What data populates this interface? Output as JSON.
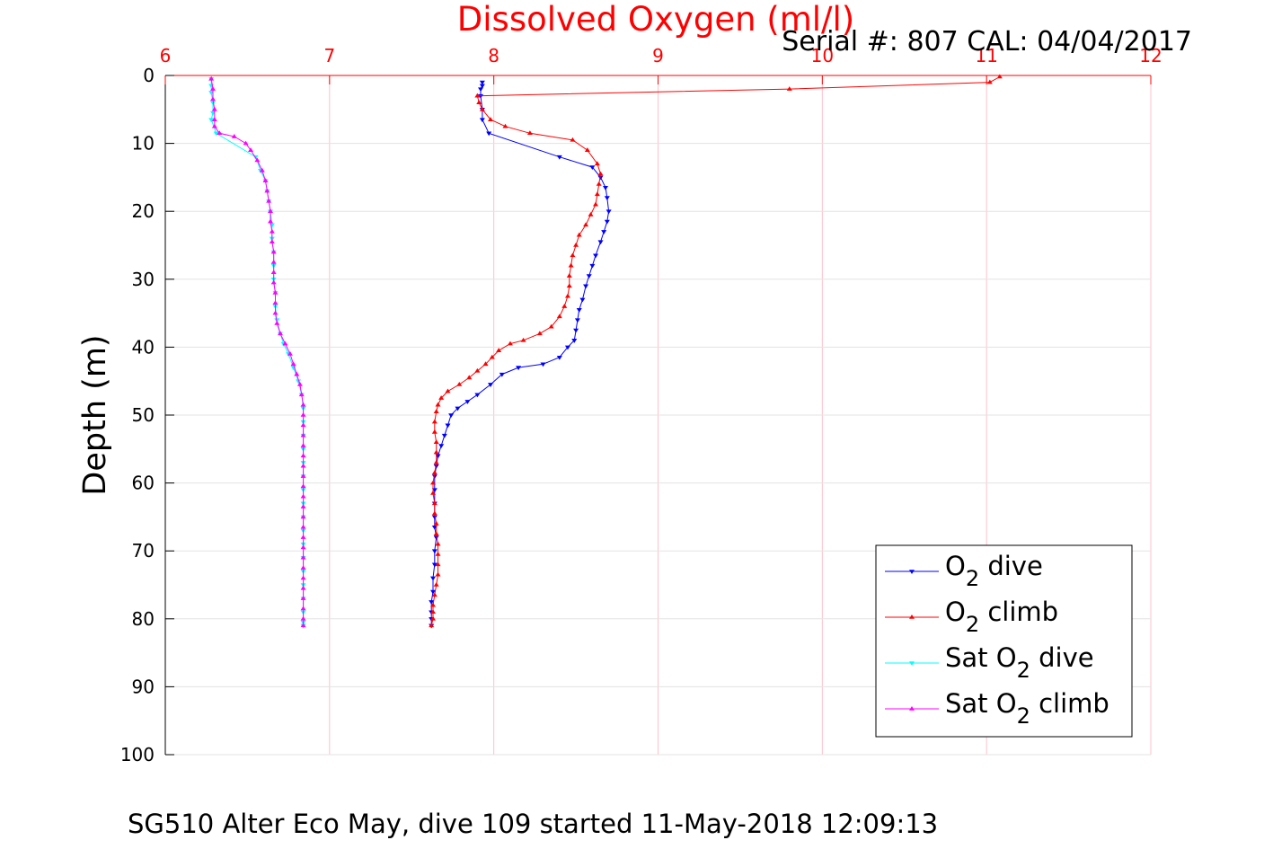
{
  "chart_data": {
    "type": "line",
    "title": "Dissolved Oxygen (ml/l)",
    "serial_note": "Serial #: 807  CAL: 04/04/2017",
    "footer": "SG510 Alter Eco May, dive 109 started 11-May-2018 12:09:13",
    "ylabel": "Depth (m)",
    "xlim": [
      6,
      12
    ],
    "ylim": [
      0,
      100
    ],
    "y_reversed": true,
    "x_axis_position": "top",
    "xticks": [
      6,
      7,
      8,
      9,
      10,
      11,
      12
    ],
    "yticks": [
      0,
      10,
      20,
      30,
      40,
      50,
      60,
      70,
      80,
      90,
      100
    ],
    "grid": true,
    "legend_position": "bottom-right",
    "colors": {
      "title": "#ff0000",
      "x_axis": "#ff0000",
      "grid": "#ffc0cb",
      "o2_dive": "#0000ff",
      "o2_climb": "#ff0000",
      "sat_dive": "#00ffff",
      "sat_climb": "#ff00ff"
    },
    "series": [
      {
        "key": "o2_dive",
        "legend": {
          "pre": "O",
          "sub": "2",
          "post": " dive"
        },
        "marker": "triangle-down",
        "points": [
          [
            7.93,
            1.0
          ],
          [
            7.93,
            1.5
          ],
          [
            7.92,
            2.0
          ],
          [
            7.92,
            3.0
          ],
          [
            7.93,
            5.0
          ],
          [
            7.93,
            6.5
          ],
          [
            7.97,
            8.5
          ],
          [
            8.4,
            12.0
          ],
          [
            8.6,
            13.5
          ],
          [
            8.65,
            15.0
          ],
          [
            8.68,
            16.5
          ],
          [
            8.69,
            18.0
          ],
          [
            8.7,
            20.0
          ],
          [
            8.69,
            21.5
          ],
          [
            8.67,
            23.0
          ],
          [
            8.65,
            24.5
          ],
          [
            8.62,
            26.5
          ],
          [
            8.6,
            28.0
          ],
          [
            8.58,
            29.5
          ],
          [
            8.56,
            31.0
          ],
          [
            8.54,
            33.0
          ],
          [
            8.52,
            34.5
          ],
          [
            8.51,
            36.0
          ],
          [
            8.5,
            37.5
          ],
          [
            8.49,
            39.0
          ],
          [
            8.45,
            40.0
          ],
          [
            8.4,
            41.5
          ],
          [
            8.3,
            42.5
          ],
          [
            8.15,
            43.0
          ],
          [
            8.05,
            44.0
          ],
          [
            7.98,
            45.5
          ],
          [
            7.9,
            47.0
          ],
          [
            7.84,
            48.0
          ],
          [
            7.78,
            49.0
          ],
          [
            7.74,
            50.0
          ],
          [
            7.72,
            51.5
          ],
          [
            7.7,
            53.0
          ],
          [
            7.68,
            54.5
          ],
          [
            7.66,
            56.0
          ],
          [
            7.65,
            57.5
          ],
          [
            7.64,
            59.0
          ],
          [
            7.64,
            61.0
          ],
          [
            7.64,
            63.0
          ],
          [
            7.64,
            65.0
          ],
          [
            7.64,
            66.5
          ],
          [
            7.65,
            68.0
          ],
          [
            7.64,
            70.0
          ],
          [
            7.64,
            72.0
          ],
          [
            7.63,
            74.0
          ],
          [
            7.63,
            76.0
          ],
          [
            7.62,
            77.5
          ],
          [
            7.62,
            79.0
          ],
          [
            7.62,
            80.0
          ],
          [
            7.62,
            81.0
          ]
        ]
      },
      {
        "key": "o2_climb",
        "legend": {
          "pre": "O",
          "sub": "2",
          "post": " climb"
        },
        "marker": "triangle-up",
        "points": [
          [
            7.62,
            81.0
          ],
          [
            7.63,
            80.0
          ],
          [
            7.63,
            79.0
          ],
          [
            7.63,
            78.0
          ],
          [
            7.64,
            76.5
          ],
          [
            7.65,
            75.0
          ],
          [
            7.66,
            73.5
          ],
          [
            7.66,
            72.0
          ],
          [
            7.66,
            70.5
          ],
          [
            7.66,
            69.0
          ],
          [
            7.65,
            67.5
          ],
          [
            7.65,
            66.0
          ],
          [
            7.64,
            64.5
          ],
          [
            7.64,
            63.0
          ],
          [
            7.63,
            61.5
          ],
          [
            7.63,
            60.0
          ],
          [
            7.64,
            58.5
          ],
          [
            7.65,
            57.0
          ],
          [
            7.65,
            55.5
          ],
          [
            7.65,
            54.0
          ],
          [
            7.64,
            52.5
          ],
          [
            7.64,
            51.0
          ],
          [
            7.65,
            49.5
          ],
          [
            7.66,
            48.5
          ],
          [
            7.68,
            47.5
          ],
          [
            7.72,
            46.5
          ],
          [
            7.79,
            45.5
          ],
          [
            7.85,
            44.5
          ],
          [
            7.9,
            43.5
          ],
          [
            7.95,
            42.5
          ],
          [
            7.99,
            41.5
          ],
          [
            8.03,
            40.5
          ],
          [
            8.1,
            39.5
          ],
          [
            8.18,
            39.0
          ],
          [
            8.28,
            38.0
          ],
          [
            8.35,
            37.0
          ],
          [
            8.4,
            35.5
          ],
          [
            8.43,
            34.0
          ],
          [
            8.45,
            32.5
          ],
          [
            8.46,
            31.0
          ],
          [
            8.46,
            29.5
          ],
          [
            8.47,
            28.0
          ],
          [
            8.48,
            26.5
          ],
          [
            8.5,
            25.0
          ],
          [
            8.52,
            23.5
          ],
          [
            8.56,
            22.0
          ],
          [
            8.59,
            20.5
          ],
          [
            8.62,
            19.0
          ],
          [
            8.63,
            17.5
          ],
          [
            8.64,
            16.0
          ],
          [
            8.65,
            14.5
          ],
          [
            8.63,
            13.0
          ],
          [
            8.57,
            11.0
          ],
          [
            8.48,
            9.5
          ],
          [
            8.22,
            8.5
          ],
          [
            8.07,
            7.5
          ],
          [
            7.98,
            6.5
          ],
          [
            7.93,
            5.0
          ],
          [
            7.91,
            4.0
          ],
          [
            7.9,
            3.0
          ],
          [
            9.8,
            2.0
          ],
          [
            11.02,
            1.0
          ],
          [
            11.08,
            0.2
          ]
        ]
      },
      {
        "key": "sat_dive",
        "legend": {
          "pre": "Sat O",
          "sub": "2",
          "post": " dive"
        },
        "marker": "triangle-down",
        "points": [
          [
            6.28,
            0.5
          ],
          [
            6.28,
            1.5
          ],
          [
            6.28,
            2.5
          ],
          [
            6.29,
            4.0
          ],
          [
            6.29,
            5.5
          ],
          [
            6.28,
            6.5
          ],
          [
            6.31,
            8.5
          ],
          [
            6.55,
            12.0
          ],
          [
            6.58,
            14.0
          ],
          [
            6.61,
            15.5
          ],
          [
            6.62,
            17.0
          ],
          [
            6.63,
            18.5
          ],
          [
            6.64,
            20.0
          ],
          [
            6.65,
            22.0
          ],
          [
            6.65,
            24.0
          ],
          [
            6.66,
            26.0
          ],
          [
            6.66,
            28.0
          ],
          [
            6.66,
            30.0
          ],
          [
            6.67,
            32.0
          ],
          [
            6.67,
            34.0
          ],
          [
            6.68,
            36.0
          ],
          [
            6.7,
            38.0
          ],
          [
            6.72,
            39.5
          ],
          [
            6.75,
            41.0
          ],
          [
            6.78,
            43.0
          ],
          [
            6.81,
            45.0
          ],
          [
            6.83,
            47.0
          ],
          [
            6.84,
            49.0
          ],
          [
            6.84,
            51.0
          ],
          [
            6.84,
            53.0
          ],
          [
            6.84,
            55.0
          ],
          [
            6.84,
            57.0
          ],
          [
            6.84,
            59.0
          ],
          [
            6.84,
            61.0
          ],
          [
            6.84,
            63.0
          ],
          [
            6.84,
            65.0
          ],
          [
            6.84,
            67.0
          ],
          [
            6.84,
            69.0
          ],
          [
            6.84,
            71.0
          ],
          [
            6.84,
            73.0
          ],
          [
            6.84,
            75.0
          ],
          [
            6.84,
            77.0
          ],
          [
            6.84,
            79.0
          ],
          [
            6.84,
            80.5
          ],
          [
            6.84,
            81.0
          ]
        ]
      },
      {
        "key": "sat_climb",
        "legend": {
          "pre": "Sat O",
          "sub": "2",
          "post": " climb"
        },
        "marker": "triangle-up",
        "points": [
          [
            6.84,
            81.0
          ],
          [
            6.84,
            80.0
          ],
          [
            6.84,
            78.5
          ],
          [
            6.84,
            77.0
          ],
          [
            6.84,
            75.5
          ],
          [
            6.84,
            74.0
          ],
          [
            6.84,
            72.5
          ],
          [
            6.84,
            71.0
          ],
          [
            6.84,
            69.5
          ],
          [
            6.84,
            68.0
          ],
          [
            6.84,
            66.5
          ],
          [
            6.84,
            65.0
          ],
          [
            6.84,
            63.5
          ],
          [
            6.84,
            62.0
          ],
          [
            6.84,
            60.5
          ],
          [
            6.84,
            59.0
          ],
          [
            6.84,
            57.5
          ],
          [
            6.84,
            56.0
          ],
          [
            6.84,
            54.5
          ],
          [
            6.84,
            53.0
          ],
          [
            6.84,
            51.5
          ],
          [
            6.84,
            50.0
          ],
          [
            6.84,
            48.5
          ],
          [
            6.83,
            47.0
          ],
          [
            6.82,
            45.5
          ],
          [
            6.8,
            44.0
          ],
          [
            6.78,
            42.5
          ],
          [
            6.76,
            41.0
          ],
          [
            6.73,
            39.5
          ],
          [
            6.7,
            38.0
          ],
          [
            6.68,
            36.5
          ],
          [
            6.67,
            35.0
          ],
          [
            6.67,
            33.5
          ],
          [
            6.67,
            32.0
          ],
          [
            6.66,
            30.5
          ],
          [
            6.66,
            29.0
          ],
          [
            6.66,
            27.5
          ],
          [
            6.66,
            26.0
          ],
          [
            6.65,
            24.5
          ],
          [
            6.65,
            23.0
          ],
          [
            6.64,
            21.5
          ],
          [
            6.64,
            20.0
          ],
          [
            6.63,
            18.5
          ],
          [
            6.62,
            17.0
          ],
          [
            6.61,
            15.5
          ],
          [
            6.59,
            14.0
          ],
          [
            6.56,
            12.5
          ],
          [
            6.52,
            11.0
          ],
          [
            6.49,
            10.0
          ],
          [
            6.42,
            9.0
          ],
          [
            6.33,
            8.5
          ],
          [
            6.3,
            7.5
          ],
          [
            6.3,
            6.5
          ],
          [
            6.3,
            5.0
          ],
          [
            6.29,
            3.5
          ],
          [
            6.29,
            2.0
          ],
          [
            6.28,
            0.5
          ]
        ]
      }
    ]
  }
}
